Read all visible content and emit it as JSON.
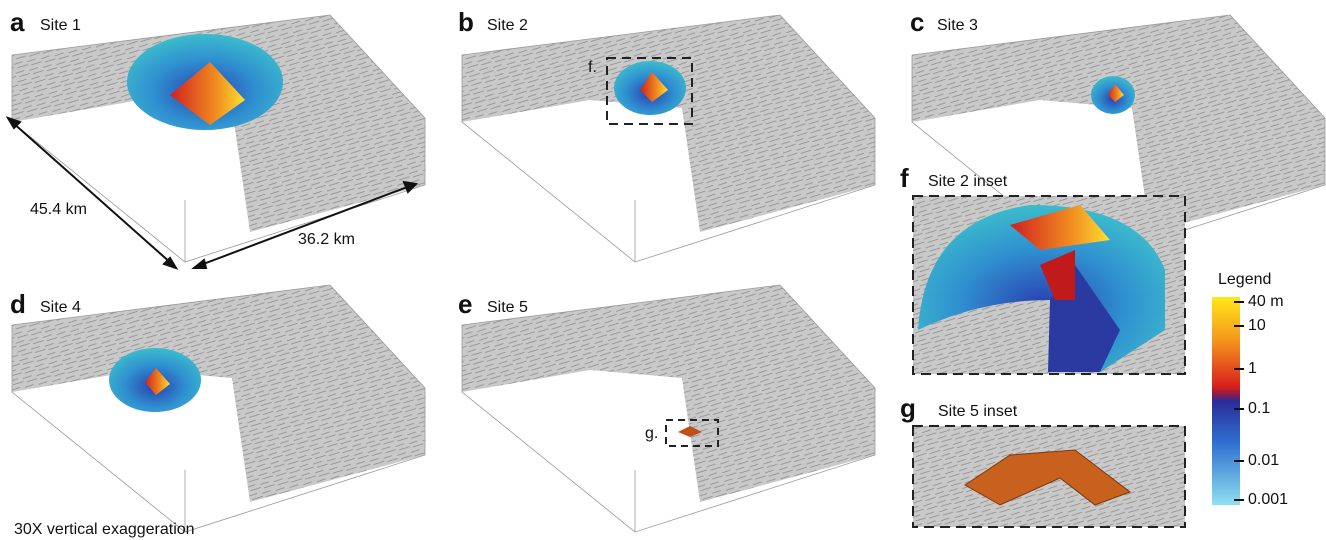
{
  "panels": [
    {
      "letter": "a",
      "label": "Site 1"
    },
    {
      "letter": "b",
      "label": "Site 2"
    },
    {
      "letter": "c",
      "label": "Site 3"
    },
    {
      "letter": "d",
      "label": "Site 4"
    },
    {
      "letter": "e",
      "label": "Site 5"
    }
  ],
  "insets": [
    {
      "letter": "f",
      "label": "Site 2 inset",
      "marker": "f."
    },
    {
      "letter": "g",
      "label": "Site 5 inset",
      "marker": "g."
    }
  ],
  "dimensions": {
    "length": "45.4 km",
    "width": "36.2 km"
  },
  "note": "30X vertical exaggeration",
  "legend": {
    "title": "Legend",
    "ticks": [
      "40 m",
      "10",
      "1",
      "0.1",
      "0.01",
      "0.001"
    ]
  }
}
